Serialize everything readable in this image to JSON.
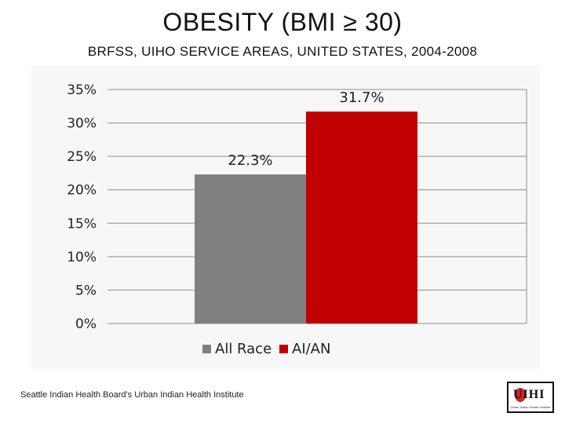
{
  "title": "OBESITY (BMI ≥ 30)",
  "subtitle": "BRFSS, UIHO SERVICE AREAS, UNITED STATES, 2004-2008",
  "footer": "Seattle Indian Health Board's Urban Indian Health Institute",
  "logo": {
    "wordmark": "UIHI",
    "tagline": "Urban Indian Health Institute"
  },
  "chart_data": {
    "type": "bar",
    "title": "",
    "xlabel": "",
    "ylabel": "",
    "ylim": [
      0,
      35
    ],
    "yticks": [
      "0%",
      "5%",
      "10%",
      "15%",
      "20%",
      "25%",
      "30%",
      "35%"
    ],
    "ytick_values": [
      0,
      5,
      10,
      15,
      20,
      25,
      30,
      35
    ],
    "grid": true,
    "legend": "bottom",
    "series": [
      {
        "name": "All Race",
        "value": 22.3,
        "label": "22.3%",
        "color": "#808080"
      },
      {
        "name": "AI/AN",
        "value": 31.7,
        "label": "31.7%",
        "color": "#c00000"
      }
    ]
  }
}
